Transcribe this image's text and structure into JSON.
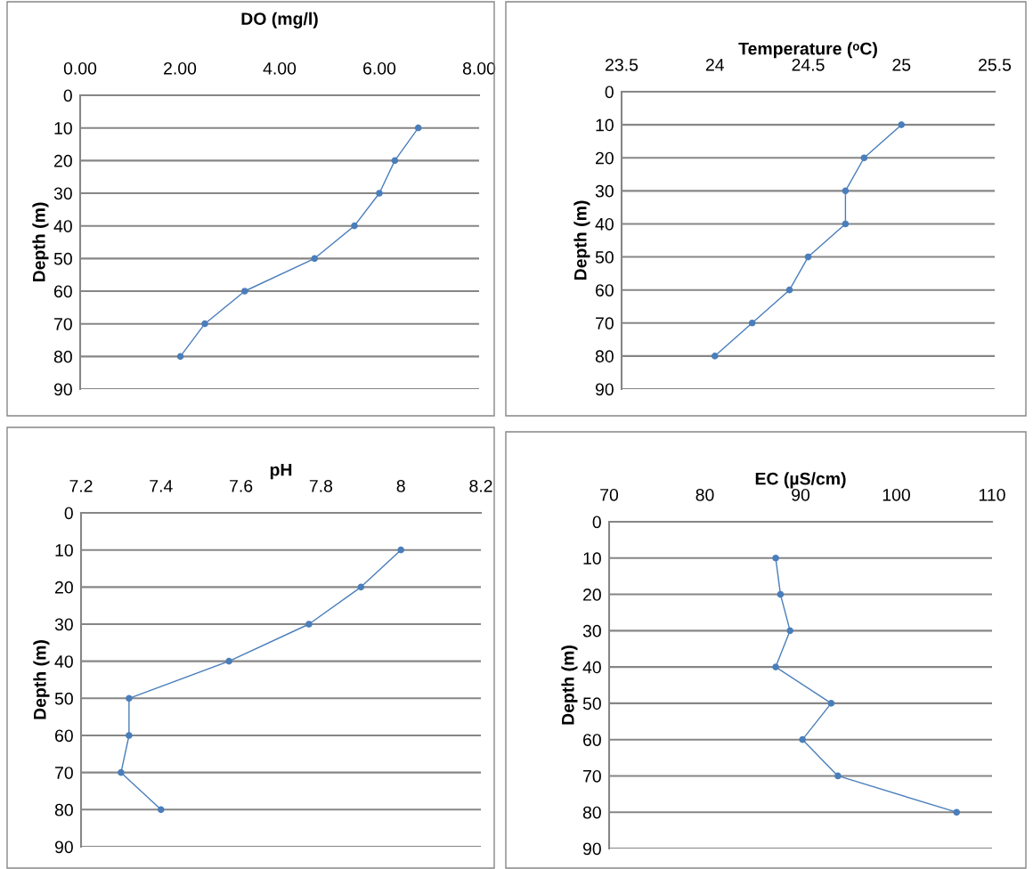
{
  "chart_data": [
    {
      "type": "line",
      "title": "DO (mg/l)",
      "ylabel": "Depth (m)",
      "xlim": [
        0,
        8
      ],
      "xticks": [
        {
          "value": 0,
          "label": "0.00"
        },
        {
          "value": 2,
          "label": "2.00"
        },
        {
          "value": 4,
          "label": "4.00"
        },
        {
          "value": 6,
          "label": "6.00"
        },
        {
          "value": 8,
          "label": "8.00"
        }
      ],
      "ylim": [
        90,
        0
      ],
      "yticks": [
        0,
        10,
        20,
        30,
        40,
        50,
        60,
        70,
        80,
        90
      ],
      "grid": "y",
      "marker": "circle",
      "line_style": "solid",
      "legend": false,
      "series": [
        {
          "color": "#4a7ebb",
          "x": [
            6.78,
            6.31,
            6.0,
            5.5,
            4.7,
            3.3,
            2.5,
            2.01
          ],
          "values": [
            10,
            20,
            30,
            40,
            50,
            60,
            70,
            80
          ]
        }
      ]
    },
    {
      "type": "line",
      "title": "Temperature (ᵒC)",
      "ylabel": "Depth (m)",
      "xlim": [
        23.5,
        25.5
      ],
      "xticks": [
        23.5,
        24,
        24.5,
        25,
        25.5
      ],
      "ylim": [
        90,
        0
      ],
      "yticks": [
        0,
        10,
        20,
        30,
        40,
        50,
        60,
        70,
        80,
        90
      ],
      "grid": "y",
      "marker": "circle",
      "line_style": "solid",
      "legend": false,
      "series": [
        {
          "color": "#4a7ebb",
          "x": [
            25.0,
            24.8,
            24.7,
            24.7,
            24.5,
            24.4,
            24.2,
            24.0
          ],
          "values": [
            10,
            20,
            30,
            40,
            50,
            60,
            70,
            80
          ]
        }
      ]
    },
    {
      "type": "line",
      "title": "pH",
      "ylabel": "Depth (m)",
      "xlim": [
        7.2,
        8.2
      ],
      "xticks": [
        7.2,
        7.4,
        7.6,
        7.8,
        8,
        8.2
      ],
      "ylim": [
        90,
        0
      ],
      "yticks": [
        0,
        10,
        20,
        30,
        40,
        50,
        60,
        70,
        80,
        90
      ],
      "grid": "y",
      "marker": "circle",
      "line_style": "solid",
      "legend": false,
      "series": [
        {
          "color": "#4a7ebb",
          "x": [
            8.0,
            7.9,
            7.77,
            7.57,
            7.32,
            7.32,
            7.3,
            7.4
          ],
          "values": [
            10,
            20,
            30,
            40,
            50,
            60,
            70,
            80
          ]
        }
      ]
    },
    {
      "type": "line",
      "title": "EC (µS/cm)",
      "ylabel": "Depth (m)",
      "xlim": [
        70,
        110
      ],
      "xticks": [
        70,
        80,
        90,
        100,
        110
      ],
      "ylim": [
        90,
        0
      ],
      "yticks": [
        0,
        10,
        20,
        30,
        40,
        50,
        60,
        70,
        80,
        90
      ],
      "grid": "y",
      "marker": "circle",
      "line_style": "solid",
      "legend": false,
      "series": [
        {
          "color": "#4a7ebb",
          "x": [
            87.4,
            87.9,
            88.9,
            87.4,
            93.2,
            90.2,
            93.9,
            106.3
          ],
          "values": [
            10,
            20,
            30,
            40,
            50,
            60,
            70,
            80
          ]
        }
      ]
    }
  ]
}
